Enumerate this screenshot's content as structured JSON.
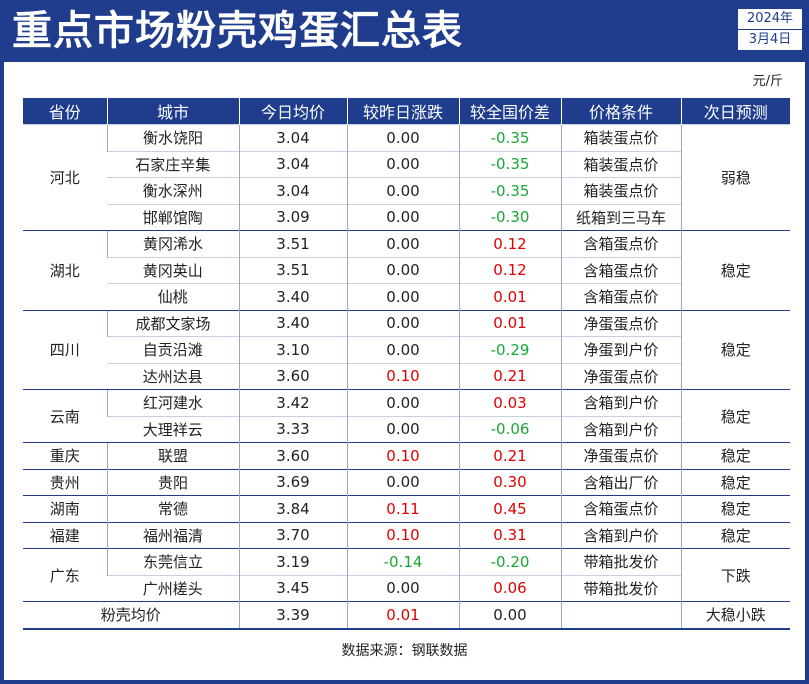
{
  "title": "重点市场粉壳鸡蛋汇总表",
  "date": {
    "year": "2024年",
    "day": "3月4日"
  },
  "unit": "元/斤",
  "columns": [
    "省份",
    "城市",
    "今日均价",
    "较昨日涨跌",
    "较全国价差",
    "价格条件",
    "次日预测"
  ],
  "rows": [
    {
      "city": "衡水饶阳",
      "price": "3.04",
      "change": "0.00",
      "diff": "-0.35",
      "cond": "箱装蛋点价"
    },
    {
      "city": "石家庄辛集",
      "price": "3.04",
      "change": "0.00",
      "diff": "-0.35",
      "cond": "箱装蛋点价"
    },
    {
      "city": "衡水深州",
      "price": "3.04",
      "change": "0.00",
      "diff": "-0.35",
      "cond": "箱装蛋点价"
    },
    {
      "city": "邯郸馆陶",
      "price": "3.09",
      "change": "0.00",
      "diff": "-0.30",
      "cond": "纸箱到三马车"
    },
    {
      "city": "黄冈浠水",
      "price": "3.51",
      "change": "0.00",
      "diff": "0.12",
      "cond": "含箱蛋点价"
    },
    {
      "city": "黄冈英山",
      "price": "3.51",
      "change": "0.00",
      "diff": "0.12",
      "cond": "含箱蛋点价"
    },
    {
      "city": "仙桃",
      "price": "3.40",
      "change": "0.00",
      "diff": "0.01",
      "cond": "含箱蛋点价"
    },
    {
      "city": "成都文家场",
      "price": "3.40",
      "change": "0.00",
      "diff": "0.01",
      "cond": "净蛋蛋点价"
    },
    {
      "city": "自贡沿滩",
      "price": "3.10",
      "change": "0.00",
      "diff": "-0.29",
      "cond": "净蛋到户价"
    },
    {
      "city": "达州达县",
      "price": "3.60",
      "change": "0.10",
      "diff": "0.21",
      "cond": "净蛋蛋点价"
    },
    {
      "city": "红河建水",
      "price": "3.42",
      "change": "0.00",
      "diff": "0.03",
      "cond": "含箱到户价"
    },
    {
      "city": "大理祥云",
      "price": "3.33",
      "change": "0.00",
      "diff": "-0.06",
      "cond": "含箱到户价"
    },
    {
      "city": "联盟",
      "price": "3.60",
      "change": "0.10",
      "diff": "0.21",
      "cond": "净蛋蛋点价"
    },
    {
      "city": "贵阳",
      "price": "3.69",
      "change": "0.00",
      "diff": "0.30",
      "cond": "含箱出厂价"
    },
    {
      "city": "常德",
      "price": "3.84",
      "change": "0.11",
      "diff": "0.45",
      "cond": "含箱蛋点价"
    },
    {
      "city": "福州福清",
      "price": "3.70",
      "change": "0.10",
      "diff": "0.31",
      "cond": "含箱到户价"
    },
    {
      "city": "东莞信立",
      "price": "3.19",
      "change": "-0.14",
      "diff": "-0.20",
      "cond": "带箱批发价"
    },
    {
      "city": "广州槎头",
      "price": "3.45",
      "change": "0.00",
      "diff": "0.06",
      "cond": "带箱批发价"
    }
  ],
  "groups": [
    {
      "province": "河北",
      "forecast": "弱稳",
      "start": 0,
      "span": 4
    },
    {
      "province": "湖北",
      "forecast": "稳定",
      "start": 4,
      "span": 3
    },
    {
      "province": "四川",
      "forecast": "稳定",
      "start": 7,
      "span": 3
    },
    {
      "province": "云南",
      "forecast": "稳定",
      "start": 10,
      "span": 2
    },
    {
      "province": "重庆",
      "forecast": "稳定",
      "start": 12,
      "span": 1
    },
    {
      "province": "贵州",
      "forecast": "稳定",
      "start": 13,
      "span": 1
    },
    {
      "province": "湖南",
      "forecast": "稳定",
      "start": 14,
      "span": 1
    },
    {
      "province": "福建",
      "forecast": "稳定",
      "start": 15,
      "span": 1
    },
    {
      "province": "广东",
      "forecast": "下跌",
      "start": 16,
      "span": 2
    }
  ],
  "summary": {
    "label": "粉壳均价",
    "price": "3.39",
    "change": "0.01",
    "diff": "0.00",
    "cond": "",
    "forecast": "大稳小跌"
  },
  "source": "数据来源：钢联数据",
  "colors": {
    "header_bg": "#1f3d8c",
    "up": "#e00000",
    "down": "#1aa834"
  }
}
